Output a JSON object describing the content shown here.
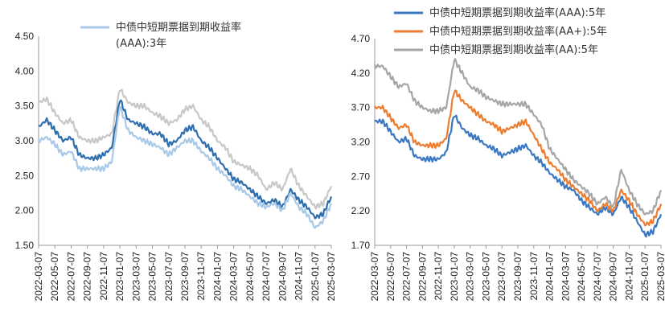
{
  "chart_data": [
    {
      "type": "line",
      "x": [
        "2022-03",
        "2022-04",
        "2022-05",
        "2022-06",
        "2022-07",
        "2022-08",
        "2022-09",
        "2022-10",
        "2022-11",
        "2022-12",
        "2023-01",
        "2023-02",
        "2023-03",
        "2023-04",
        "2023-05",
        "2023-06",
        "2023-07",
        "2023-08",
        "2023-09",
        "2023-10",
        "2023-11",
        "2023-12",
        "2024-01",
        "2024-02",
        "2024-03",
        "2024-04",
        "2024-05",
        "2024-06",
        "2024-07",
        "2024-08",
        "2024-09",
        "2024-10",
        "2024-11",
        "2024-12",
        "2025-01",
        "2025-02",
        "2025-03"
      ],
      "x_tick_labels": [
        "2022-03-07",
        "2022-05-07",
        "2022-07-07",
        "2022-09-07",
        "2022-11-07",
        "2023-01-07",
        "2023-03-07",
        "2023-05-07",
        "2023-07-07",
        "2023-09-07",
        "2023-11-07",
        "2024-01-07",
        "2024-03-07",
        "2024-05-07",
        "2024-07-07",
        "2024-09-07",
        "2024-11-07",
        "2025-01-07",
        "2025-03-07"
      ],
      "ylim": [
        1.5,
        4.5
      ],
      "yticks": [
        "1.50",
        "2.00",
        "2.50",
        "3.00",
        "3.50",
        "4.00",
        "4.50"
      ],
      "legend_position": "top",
      "series": [
        {
          "name": "",
          "color": "#c8c8c8",
          "values": [
            3.55,
            3.6,
            3.4,
            3.25,
            3.3,
            3.05,
            3.0,
            3.0,
            3.05,
            3.1,
            3.75,
            3.55,
            3.5,
            3.5,
            3.4,
            3.35,
            3.25,
            3.3,
            3.45,
            3.5,
            3.3,
            3.2,
            3.0,
            2.9,
            2.7,
            2.65,
            2.6,
            2.5,
            2.3,
            2.4,
            2.3,
            2.6,
            2.35,
            2.2,
            2.05,
            2.1,
            2.35
          ]
        },
        {
          "name": "",
          "color": "#2f6fad",
          "values": [
            3.2,
            3.3,
            3.15,
            3.0,
            3.05,
            2.8,
            2.75,
            2.75,
            2.8,
            2.9,
            3.6,
            3.3,
            3.25,
            3.2,
            3.1,
            3.1,
            2.95,
            3.0,
            3.15,
            3.2,
            3.0,
            2.9,
            2.75,
            2.6,
            2.45,
            2.4,
            2.3,
            2.2,
            2.1,
            2.15,
            2.05,
            2.3,
            2.15,
            2.05,
            1.9,
            1.95,
            2.2
          ]
        },
        {
          "name": "中债中短期票据到期收益率(AAA):3年",
          "color": "#a9c9e8",
          "values": [
            3.0,
            3.05,
            2.95,
            2.8,
            2.85,
            2.6,
            2.6,
            2.6,
            2.6,
            2.7,
            3.5,
            3.15,
            3.05,
            3.0,
            2.95,
            2.9,
            2.8,
            2.9,
            3.0,
            3.0,
            2.85,
            2.75,
            2.6,
            2.5,
            2.35,
            2.3,
            2.2,
            2.1,
            2.05,
            2.1,
            2.0,
            2.25,
            2.05,
            1.95,
            1.75,
            1.85,
            2.1
          ]
        }
      ]
    },
    {
      "type": "line",
      "x": [
        "2022-03",
        "2022-04",
        "2022-05",
        "2022-06",
        "2022-07",
        "2022-08",
        "2022-09",
        "2022-10",
        "2022-11",
        "2022-12",
        "2023-01",
        "2023-02",
        "2023-03",
        "2023-04",
        "2023-05",
        "2023-06",
        "2023-07",
        "2023-08",
        "2023-09",
        "2023-10",
        "2023-11",
        "2023-12",
        "2024-01",
        "2024-02",
        "2024-03",
        "2024-04",
        "2024-05",
        "2024-06",
        "2024-07",
        "2024-08",
        "2024-09",
        "2024-10",
        "2024-11",
        "2024-12",
        "2025-01",
        "2025-02",
        "2025-03"
      ],
      "x_tick_labels": [
        "2022-03-07",
        "2022-05-07",
        "2022-07-07",
        "2022-09-07",
        "2022-11-07",
        "2023-01-07",
        "2023-03-07",
        "2023-05-07",
        "2023-07-07",
        "2023-09-07",
        "2023-11-07",
        "2024-01-07",
        "2024-03-07",
        "2024-05-07",
        "2024-07-07",
        "2024-09-07",
        "2024-11-07",
        "2025-01-07",
        "2025-03-07"
      ],
      "ylim": [
        1.7,
        4.7
      ],
      "yticks": [
        "1.70",
        "2.20",
        "2.70",
        "3.20",
        "3.70",
        "4.20",
        "4.70"
      ],
      "legend_position": "top",
      "series": [
        {
          "name": "中债中短期票据到期收益率(AAA):5年",
          "color": "#3a78c2",
          "values": [
            3.5,
            3.5,
            3.35,
            3.2,
            3.25,
            3.0,
            2.95,
            2.95,
            2.95,
            3.05,
            3.6,
            3.4,
            3.3,
            3.25,
            3.15,
            3.1,
            3.0,
            3.05,
            3.1,
            3.15,
            3.0,
            2.9,
            2.75,
            2.65,
            2.55,
            2.5,
            2.35,
            2.25,
            2.15,
            2.25,
            2.15,
            2.4,
            2.25,
            2.05,
            1.85,
            1.9,
            2.15
          ]
        },
        {
          "name": "中债中短期票据到期收益率(AA+):5年",
          "color": "#ed7d31",
          "values": [
            3.7,
            3.7,
            3.55,
            3.4,
            3.45,
            3.2,
            3.15,
            3.15,
            3.15,
            3.25,
            3.95,
            3.8,
            3.7,
            3.6,
            3.5,
            3.45,
            3.35,
            3.4,
            3.45,
            3.5,
            3.3,
            3.1,
            2.9,
            2.8,
            2.65,
            2.55,
            2.45,
            2.35,
            2.2,
            2.3,
            2.2,
            2.5,
            2.35,
            2.15,
            2.0,
            2.05,
            2.3
          ]
        },
        {
          "name": "中债中短期票据到期收益率(AA):5年",
          "color": "#a6a6a6",
          "values": [
            4.3,
            4.3,
            4.15,
            4.0,
            4.05,
            3.8,
            3.7,
            3.65,
            3.65,
            3.7,
            4.4,
            4.2,
            4.0,
            3.95,
            3.85,
            3.8,
            3.75,
            3.75,
            3.75,
            3.75,
            3.6,
            3.45,
            3.1,
            2.95,
            2.8,
            2.65,
            2.55,
            2.45,
            2.3,
            2.4,
            2.25,
            2.8,
            2.5,
            2.3,
            2.15,
            2.2,
            2.5
          ]
        }
      ]
    }
  ]
}
